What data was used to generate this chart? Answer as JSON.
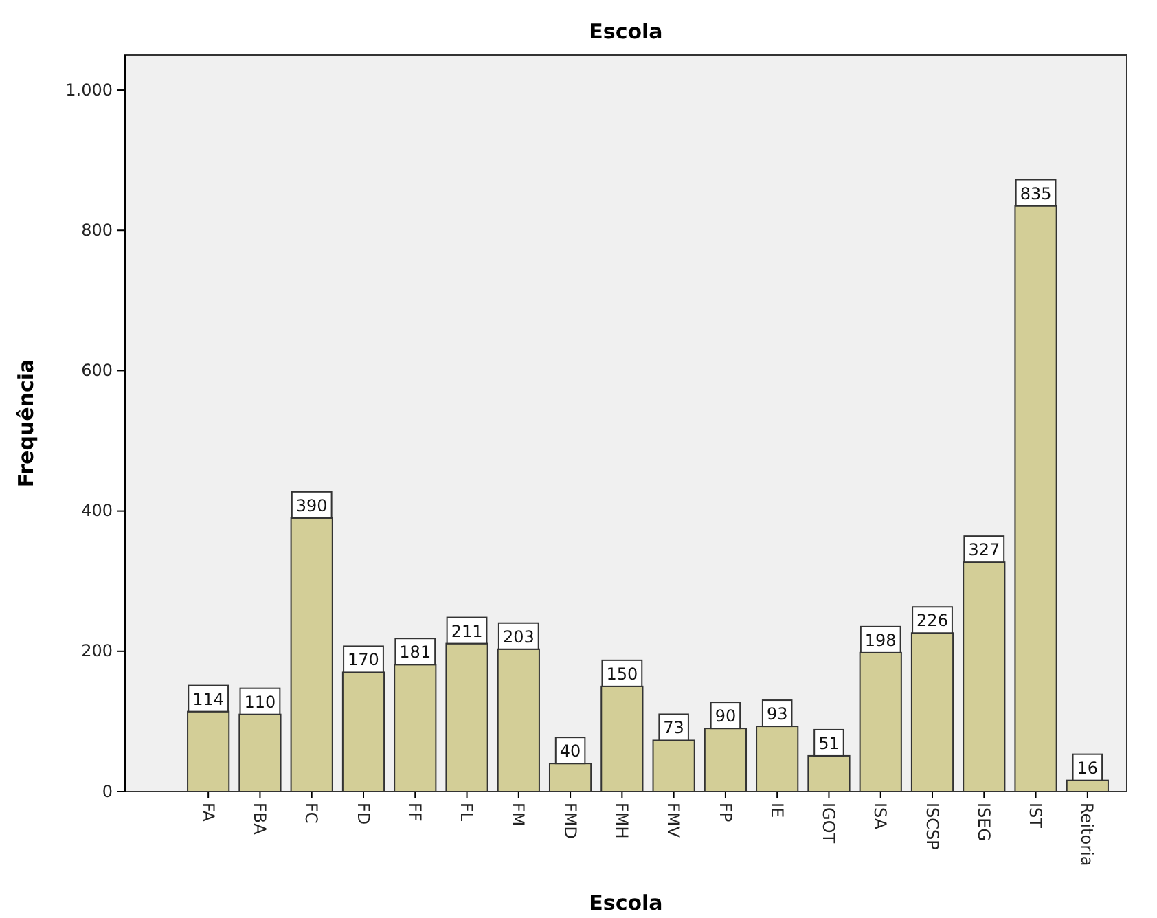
{
  "chart_data": {
    "type": "bar",
    "title": "Escola",
    "xlabel": "Escola",
    "ylabel": "Frequência",
    "categories": [
      "FA",
      "FBA",
      "FC",
      "FD",
      "FF",
      "FL",
      "FM",
      "FMD",
      "FMH",
      "FMV",
      "FP",
      "IE",
      "IGOT",
      "ISA",
      "ISCSP",
      "ISEG",
      "IST",
      "Reitoria"
    ],
    "values": [
      114,
      110,
      390,
      170,
      181,
      211,
      203,
      40,
      150,
      73,
      90,
      93,
      51,
      198,
      226,
      327,
      835,
      16
    ],
    "color": "#d3ce97",
    "ylim": [
      0,
      1050
    ],
    "yticks": [
      0,
      200,
      400,
      600,
      800,
      {
        "value": 1000,
        "label": "1.000"
      }
    ],
    "data_labels": true,
    "grid": false
  }
}
